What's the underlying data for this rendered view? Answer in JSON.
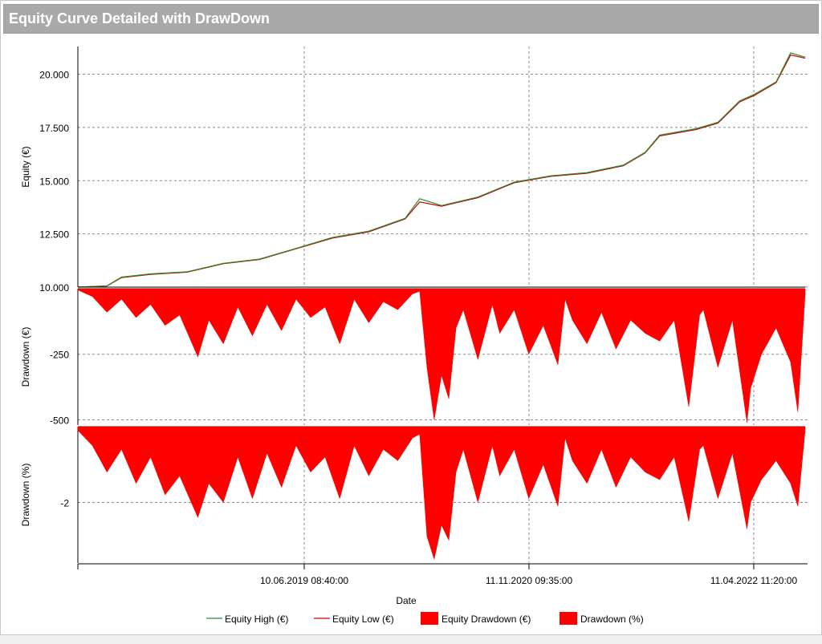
{
  "window": {
    "title": "Equity Curve Detailed with DrawDown"
  },
  "chart_data": {
    "type": "line",
    "xlabel": "Date",
    "x_ticks": [
      "10.06.2019 08:40:00",
      "11.11.2020 09:35:00",
      "11.04.2022 11:20:00"
    ],
    "legend": [
      {
        "name": "Equity High (€)",
        "kind": "line",
        "color": "#2e8b2e"
      },
      {
        "name": "Equity Low (€)",
        "kind": "line",
        "color": "#cc0000"
      },
      {
        "name": "Equity Drawdown (€)",
        "kind": "area",
        "color": "#ff0000"
      },
      {
        "name": "Drawdown (%)",
        "kind": "area",
        "color": "#ff0000"
      }
    ],
    "panels": [
      {
        "name": "equity",
        "ylabel": "Equity (€)",
        "ylim": [
          10000,
          21300
        ],
        "yticks": [
          10000,
          12500,
          15000,
          17500,
          20000
        ],
        "ytick_labels": [
          "10.000",
          "12.500",
          "15.000",
          "17.500",
          "20.000"
        ],
        "series": [
          {
            "name": "Equity Low (€)",
            "color": "#cc0000",
            "x": [
              0,
              0.04,
              0.06,
              0.1,
              0.15,
              0.2,
              0.25,
              0.3,
              0.35,
              0.4,
              0.45,
              0.47,
              0.5,
              0.55,
              0.6,
              0.65,
              0.7,
              0.75,
              0.78,
              0.8,
              0.85,
              0.88,
              0.91,
              0.93,
              0.96,
              0.98,
              1.0
            ],
            "y": [
              10000,
              10050,
              10450,
              10600,
              10700,
              11100,
              11300,
              11800,
              12300,
              12600,
              13200,
              14000,
              13800,
              14200,
              14900,
              15200,
              15350,
              15700,
              16300,
              17100,
              17400,
              17700,
              18700,
              19000,
              19600,
              20900,
              20750
            ]
          },
          {
            "name": "Equity High (€)",
            "color": "#2e8b2e",
            "x": [
              0,
              0.04,
              0.06,
              0.1,
              0.15,
              0.2,
              0.25,
              0.3,
              0.35,
              0.4,
              0.45,
              0.47,
              0.5,
              0.55,
              0.6,
              0.65,
              0.7,
              0.75,
              0.78,
              0.8,
              0.85,
              0.88,
              0.91,
              0.93,
              0.96,
              0.98,
              1.0
            ],
            "y": [
              10000,
              10060,
              10470,
              10620,
              10720,
              11120,
              11320,
              11820,
              12330,
              12630,
              13230,
              14150,
              13830,
              14230,
              14930,
              15230,
              15380,
              15730,
              16330,
              17140,
              17440,
              17740,
              18750,
              19050,
              19640,
              21000,
              20800
            ]
          }
        ]
      },
      {
        "name": "equity-drawdown",
        "ylabel": "Drawdown (€)",
        "ylim": [
          -520,
          0
        ],
        "yticks": [
          -250,
          -500
        ],
        "ytick_labels": [
          "-250",
          "-500"
        ],
        "fill_color": "#ff0000",
        "x": [
          0,
          0.02,
          0.04,
          0.06,
          0.08,
          0.1,
          0.12,
          0.14,
          0.165,
          0.18,
          0.2,
          0.22,
          0.24,
          0.26,
          0.28,
          0.3,
          0.32,
          0.34,
          0.36,
          0.38,
          0.4,
          0.42,
          0.44,
          0.46,
          0.47,
          0.48,
          0.49,
          0.5,
          0.51,
          0.52,
          0.53,
          0.55,
          0.57,
          0.58,
          0.6,
          0.62,
          0.64,
          0.66,
          0.67,
          0.68,
          0.7,
          0.72,
          0.74,
          0.76,
          0.78,
          0.8,
          0.82,
          0.84,
          0.855,
          0.86,
          0.88,
          0.9,
          0.92,
          0.925,
          0.94,
          0.96,
          0.98,
          0.99,
          1.0
        ],
        "y": [
          -5,
          -30,
          -90,
          -40,
          -110,
          -60,
          -140,
          -100,
          -260,
          -120,
          -210,
          -70,
          -180,
          -60,
          -160,
          -40,
          -110,
          -70,
          -210,
          -40,
          -130,
          -50,
          -80,
          -20,
          -10,
          -300,
          -500,
          -330,
          -420,
          -150,
          -80,
          -270,
          -60,
          -170,
          -80,
          -250,
          -140,
          -290,
          -40,
          -120,
          -210,
          -90,
          -230,
          -120,
          -170,
          -200,
          -120,
          -450,
          -100,
          -80,
          -300,
          -120,
          -510,
          -380,
          -250,
          -150,
          -280,
          -470,
          -20
        ]
      },
      {
        "name": "percent-drawdown",
        "ylabel": "Drawdown (%)",
        "ylim": [
          -3.6,
          0
        ],
        "yticks": [
          -2
        ],
        "ytick_labels": [
          "-2"
        ],
        "fill_color": "#ff0000",
        "x": [
          0,
          0.02,
          0.04,
          0.06,
          0.08,
          0.1,
          0.12,
          0.14,
          0.165,
          0.18,
          0.2,
          0.22,
          0.24,
          0.26,
          0.28,
          0.3,
          0.32,
          0.34,
          0.36,
          0.38,
          0.4,
          0.42,
          0.44,
          0.46,
          0.47,
          0.48,
          0.49,
          0.5,
          0.51,
          0.52,
          0.53,
          0.55,
          0.57,
          0.58,
          0.6,
          0.62,
          0.64,
          0.66,
          0.67,
          0.68,
          0.7,
          0.72,
          0.74,
          0.76,
          0.78,
          0.8,
          0.82,
          0.84,
          0.855,
          0.86,
          0.88,
          0.9,
          0.92,
          0.925,
          0.94,
          0.96,
          0.98,
          0.99,
          1.0
        ],
        "y": [
          -0.1,
          -0.5,
          -1.2,
          -0.6,
          -1.5,
          -0.8,
          -1.8,
          -1.3,
          -2.4,
          -1.5,
          -2.0,
          -0.8,
          -1.9,
          -0.7,
          -1.6,
          -0.5,
          -1.2,
          -0.8,
          -1.9,
          -0.5,
          -1.3,
          -0.6,
          -0.9,
          -0.3,
          -0.2,
          -2.9,
          -3.5,
          -2.6,
          -3.0,
          -1.2,
          -0.6,
          -2.0,
          -0.5,
          -1.3,
          -0.6,
          -1.9,
          -1.0,
          -2.1,
          -0.3,
          -0.9,
          -1.5,
          -0.6,
          -1.6,
          -0.8,
          -1.2,
          -1.4,
          -0.8,
          -2.5,
          -0.6,
          -0.5,
          -1.9,
          -0.7,
          -2.7,
          -2.0,
          -1.4,
          -0.9,
          -1.5,
          -2.1,
          -0.1
        ]
      }
    ]
  }
}
